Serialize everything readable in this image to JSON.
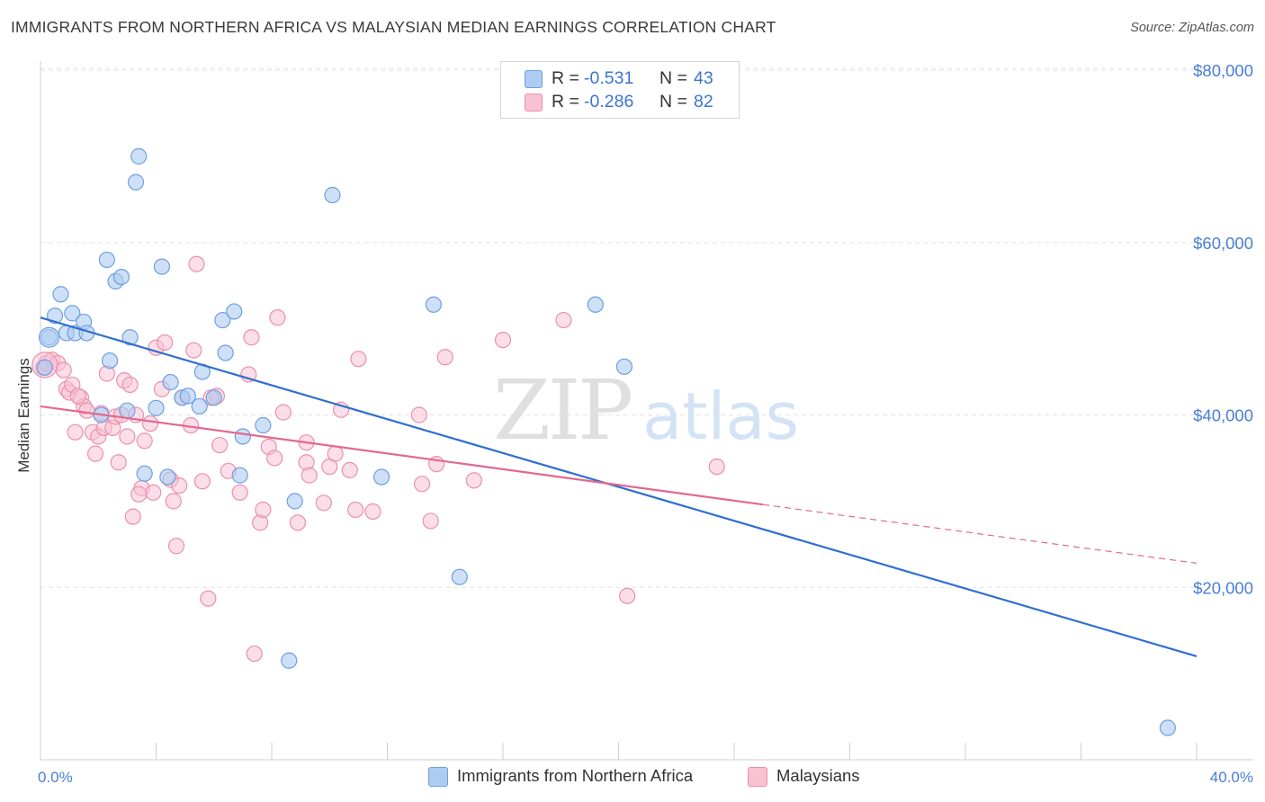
{
  "header": {
    "title": "IMMIGRANTS FROM NORTHERN AFRICA VS MALAYSIAN MEDIAN EARNINGS CORRELATION CHART",
    "source": "Source: ZipAtlas.com"
  },
  "watermark": {
    "zip": "ZIP",
    "atlas": "atlas"
  },
  "legend": {
    "rows": [
      {
        "r_label": "R =",
        "r_value": "-0.531",
        "n_label": "N =",
        "n_value": "43"
      },
      {
        "r_label": "R =",
        "r_value": "-0.286",
        "n_label": "N =",
        "n_value": "82"
      }
    ]
  },
  "bottom_legend": {
    "series1": "Immigrants from Northern Africa",
    "series2": "Malaysians"
  },
  "colors": {
    "blue_fill": "#aecbf2",
    "blue_stroke": "#6d9fe0",
    "blue_line": "#2f6fcf",
    "pink_fill": "#f8c2d3",
    "pink_stroke": "#ec8fae",
    "pink_line": "#e2688f",
    "tick_text": "#4a7fd6"
  },
  "chart_data": {
    "type": "scatter",
    "title": "IMMIGRANTS FROM NORTHERN AFRICA VS MALAYSIAN MEDIAN EARNINGS CORRELATION CHART",
    "xlabel": "",
    "ylabel": "Median Earnings",
    "xlim": [
      0,
      40
    ],
    "ylim": [
      0,
      82000
    ],
    "x_tick_labels": [
      "0.0%",
      "40.0%"
    ],
    "y_ticks": [
      20000,
      40000,
      60000,
      80000
    ],
    "y_tick_labels": [
      "$20,000",
      "$40,000",
      "$60,000",
      "$80,000"
    ],
    "grid": "horizontal dashed",
    "series": [
      {
        "name": "Immigrants from Northern Africa",
        "color": "#6d9fe0",
        "points": [
          [
            0.15,
            45500
          ],
          [
            0.3,
            49000
          ],
          [
            0.5,
            51500
          ],
          [
            0.7,
            54000
          ],
          [
            0.9,
            49500
          ],
          [
            1.1,
            51800
          ],
          [
            1.2,
            49500
          ],
          [
            1.5,
            50800
          ],
          [
            1.6,
            49500
          ],
          [
            2.3,
            58000
          ],
          [
            2.4,
            46300
          ],
          [
            2.6,
            55500
          ],
          [
            2.8,
            56000
          ],
          [
            3.1,
            49000
          ],
          [
            3.4,
            70000
          ],
          [
            3.3,
            67000
          ],
          [
            4.2,
            57200
          ],
          [
            4.5,
            43800
          ],
          [
            4.9,
            42000
          ],
          [
            5.1,
            42200
          ],
          [
            5.5,
            41000
          ],
          [
            5.6,
            45000
          ],
          [
            6.0,
            42000
          ],
          [
            6.3,
            51000
          ],
          [
            6.4,
            47200
          ],
          [
            6.7,
            52000
          ],
          [
            7.0,
            37500
          ],
          [
            2.1,
            40000
          ],
          [
            3.0,
            40500
          ],
          [
            3.6,
            33200
          ],
          [
            4.4,
            32800
          ],
          [
            6.9,
            33000
          ],
          [
            7.7,
            38800
          ],
          [
            8.8,
            30000
          ],
          [
            10.1,
            65500
          ],
          [
            11.8,
            32800
          ],
          [
            13.6,
            52800
          ],
          [
            14.5,
            21200
          ],
          [
            8.6,
            11500
          ],
          [
            19.2,
            52800
          ],
          [
            20.2,
            45600
          ],
          [
            39.0,
            3700
          ],
          [
            4.0,
            40800
          ]
        ]
      },
      {
        "name": "Malaysians",
        "color": "#ec8fae",
        "points": [
          [
            0.1,
            45500
          ],
          [
            0.2,
            46000
          ],
          [
            0.4,
            46400
          ],
          [
            0.6,
            46000
          ],
          [
            0.8,
            45200
          ],
          [
            0.9,
            43000
          ],
          [
            1.0,
            42600
          ],
          [
            1.1,
            43500
          ],
          [
            1.2,
            38000
          ],
          [
            1.4,
            42000
          ],
          [
            1.5,
            41000
          ],
          [
            1.6,
            40500
          ],
          [
            1.8,
            38000
          ],
          [
            1.9,
            35500
          ],
          [
            2.0,
            37500
          ],
          [
            2.1,
            40200
          ],
          [
            2.2,
            38500
          ],
          [
            2.3,
            44800
          ],
          [
            2.5,
            38500
          ],
          [
            2.6,
            39800
          ],
          [
            2.8,
            40000
          ],
          [
            2.9,
            44000
          ],
          [
            3.0,
            37500
          ],
          [
            3.1,
            43500
          ],
          [
            3.2,
            28200
          ],
          [
            3.3,
            40000
          ],
          [
            3.5,
            31500
          ],
          [
            3.6,
            37000
          ],
          [
            3.8,
            39000
          ],
          [
            3.9,
            31000
          ],
          [
            4.0,
            47800
          ],
          [
            4.2,
            43000
          ],
          [
            4.3,
            48400
          ],
          [
            4.5,
            32500
          ],
          [
            4.6,
            30000
          ],
          [
            4.7,
            24800
          ],
          [
            4.8,
            31800
          ],
          [
            4.9,
            42000
          ],
          [
            5.2,
            38800
          ],
          [
            5.3,
            47500
          ],
          [
            5.4,
            57500
          ],
          [
            5.6,
            32300
          ],
          [
            5.8,
            18700
          ],
          [
            6.1,
            42200
          ],
          [
            6.2,
            36500
          ],
          [
            6.5,
            33500
          ],
          [
            6.9,
            31000
          ],
          [
            7.2,
            44700
          ],
          [
            7.3,
            49000
          ],
          [
            7.4,
            12300
          ],
          [
            7.6,
            27500
          ],
          [
            7.7,
            29000
          ],
          [
            7.9,
            36300
          ],
          [
            8.1,
            35000
          ],
          [
            8.2,
            51300
          ],
          [
            8.4,
            40300
          ],
          [
            8.9,
            27500
          ],
          [
            9.2,
            34500
          ],
          [
            9.3,
            33000
          ],
          [
            9.8,
            29800
          ],
          [
            10.0,
            34000
          ],
          [
            10.2,
            35500
          ],
          [
            10.4,
            40600
          ],
          [
            10.7,
            33600
          ],
          [
            10.9,
            29000
          ],
          [
            11.0,
            46500
          ],
          [
            11.5,
            28800
          ],
          [
            13.1,
            40000
          ],
          [
            13.2,
            32000
          ],
          [
            13.5,
            27700
          ],
          [
            13.7,
            34300
          ],
          [
            14.0,
            46700
          ],
          [
            15.0,
            32400
          ],
          [
            16.0,
            48700
          ],
          [
            18.1,
            51000
          ],
          [
            20.3,
            19000
          ],
          [
            23.4,
            34000
          ],
          [
            5.9,
            42000
          ],
          [
            3.4,
            30800
          ],
          [
            9.2,
            36800
          ],
          [
            2.7,
            34500
          ],
          [
            1.3,
            42200
          ]
        ]
      }
    ],
    "trendlines": [
      {
        "series": "Immigrants from Northern Africa",
        "x": [
          0,
          40
        ],
        "y": [
          51300,
          12000
        ],
        "style": "solid"
      },
      {
        "series": "Malaysians",
        "x": [
          0,
          25
        ],
        "y": [
          41000,
          29600
        ],
        "style": "solid"
      },
      {
        "series": "Malaysians",
        "x": [
          25,
          40
        ],
        "y": [
          29600,
          22800
        ],
        "style": "dashed"
      }
    ]
  }
}
